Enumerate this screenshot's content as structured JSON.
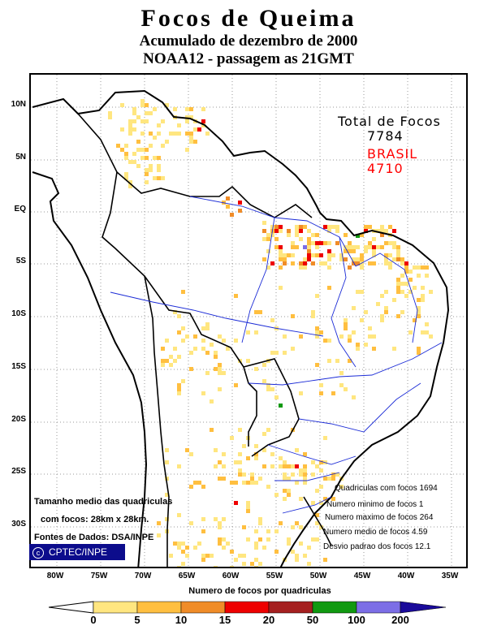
{
  "title": {
    "line1": "Focos de Queima",
    "line2": "Acumulado de dezembro de 2000",
    "line3": "NOAA12 - passagem as 21GMT"
  },
  "axes": {
    "lat_labels": [
      "10N",
      "5N",
      "EQ",
      "5S",
      "10S",
      "15S",
      "20S",
      "25S",
      "30S"
    ],
    "lon_labels": [
      "80W",
      "75W",
      "70W",
      "65W",
      "60W",
      "55W",
      "50W",
      "45W",
      "40W",
      "35W"
    ]
  },
  "totals": {
    "total_label": "Total de Focos",
    "total_value": "7784",
    "brasil_label": "BRASIL",
    "brasil_value": "4710",
    "brasil_color": "#ff0000"
  },
  "stats": {
    "cells": "Quadriculas com focos 1694",
    "min": "Numero minimo de focos 1",
    "max": "Numero maximo de focos 264",
    "mean": "Numero medio de focos 4.59",
    "std": "Desvio padrao dos focos 12.1"
  },
  "notes": {
    "size_line1": "Tamanho medio das quadriculas",
    "size_line2": "com focos: 28km x 28km.",
    "source": "Fontes de Dados: DSA/INPE",
    "copyright_symbol": "c",
    "badge": "CPTEC/INPE"
  },
  "scale": {
    "title": "Numero de focos por quadriculas",
    "labels": [
      "0",
      "5",
      "10",
      "15",
      "20",
      "50",
      "100",
      "200"
    ],
    "colors": [
      "#ffe680",
      "#ffbf40",
      "#f08c28",
      "#ee0000",
      "#a52020",
      "#119911",
      "#7c6ee6",
      "#1a0a9a"
    ]
  }
}
